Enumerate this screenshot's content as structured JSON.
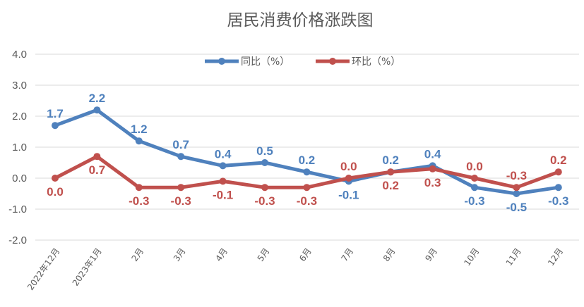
{
  "chart_data": {
    "type": "line",
    "title": "居民消费价格涨跌图",
    "categories": [
      "2022年12月",
      "2023年1月",
      "2月",
      "3月",
      "4月",
      "5月",
      "6月",
      "7月",
      "8月",
      "9月",
      "10月",
      "11月",
      "12月"
    ],
    "series": [
      {
        "name": "同比（%）",
        "color": "#4f81bd",
        "values": [
          1.7,
          2.2,
          1.2,
          0.7,
          0.4,
          0.5,
          0.2,
          -0.1,
          0.2,
          0.4,
          -0.3,
          -0.5,
          -0.3
        ],
        "labels": [
          "1.7",
          "2.2",
          "1.2",
          "0.7",
          "0.4",
          "0.5",
          "0.2",
          "-0.1",
          "0.2",
          "0.4",
          "-0.3",
          "-0.5",
          "-0.3"
        ]
      },
      {
        "name": "环比（%）",
        "color": "#c0504d",
        "values": [
          0.0,
          0.7,
          -0.3,
          -0.3,
          -0.1,
          -0.3,
          -0.3,
          0.0,
          0.2,
          0.3,
          0.0,
          -0.3,
          0.2
        ],
        "labels": [
          "0.0",
          "0.7",
          "-0.3",
          "-0.3",
          "-0.1",
          "-0.3",
          "-0.3",
          "0.0",
          "0.2",
          "0.3",
          "0.0",
          "-0.3",
          "0.2"
        ]
      }
    ],
    "ylim": [
      -2.0,
      4.0
    ],
    "yticks": [
      "-2.0",
      "-1.0",
      "0.0",
      "1.0",
      "2.0",
      "3.0",
      "4.0"
    ],
    "grid": true,
    "legend_position": "top"
  }
}
